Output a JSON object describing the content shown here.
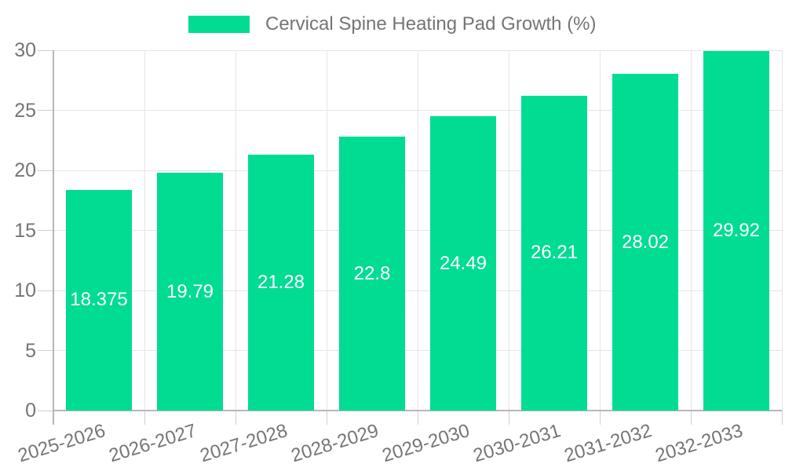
{
  "chart_data": {
    "type": "bar",
    "title": "Cervical Spine Heating Pad Growth (%)",
    "categories": [
      "2025-2026",
      "2026-2027",
      "2027-2028",
      "2028-2029",
      "2029-2030",
      "2030-2031",
      "2031-2032",
      "2032-2033"
    ],
    "values": [
      18.375,
      19.79,
      21.28,
      22.8,
      24.49,
      26.21,
      28.02,
      29.92
    ],
    "value_labels": [
      "18.375",
      "19.79",
      "21.28",
      "22.8",
      "24.49",
      "26.21",
      "28.02",
      "29.92"
    ],
    "xlabel": "",
    "ylabel": "",
    "ylim": [
      0,
      30
    ],
    "yticks": [
      0,
      5,
      10,
      15,
      20,
      25,
      30
    ],
    "grid": true,
    "legend_position": "top-center",
    "colors": {
      "bar": "#00DC91",
      "bar_value_text": "#ffffff",
      "axis_text": "#757575",
      "legend_text": "#757575",
      "gridline": "#e6e6e6",
      "tick": "#cfcfcf",
      "axis_line": "#b8b8b8",
      "background": "#ffffff"
    }
  }
}
